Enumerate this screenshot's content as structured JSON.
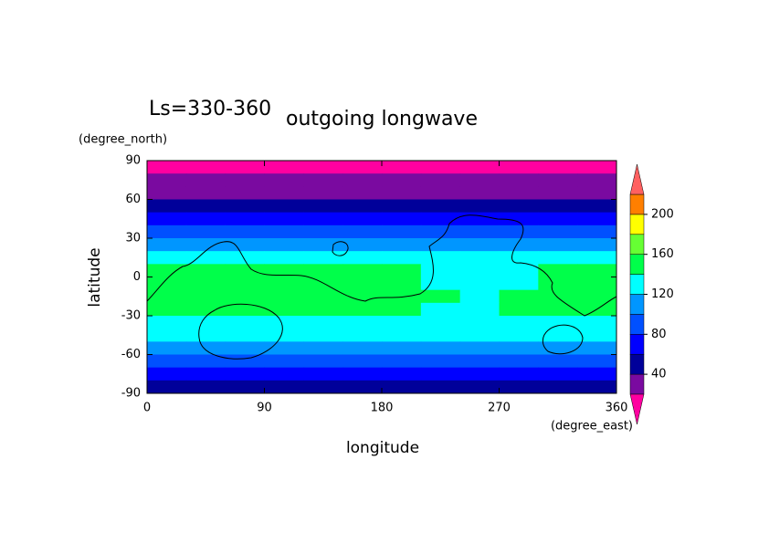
{
  "chart_data": {
    "type": "contourf",
    "title": "outgoing longwave",
    "subtitle": "Ls=330-360",
    "x_label": "longitude",
    "x_unit": "(degree_east)",
    "y_label": "latitude",
    "y_unit": "(degree_north)",
    "xlim": [
      0,
      360
    ],
    "xticks": [
      0,
      90,
      180,
      270,
      360
    ],
    "ylim": [
      -90,
      90
    ],
    "yticks": [
      90,
      60,
      30,
      0,
      -30,
      -60,
      -90
    ],
    "lat": [
      85,
      75,
      65,
      55,
      45,
      35,
      25,
      15,
      5,
      -5,
      -15,
      -25,
      -35,
      -45,
      -55,
      -65,
      -75,
      -85
    ],
    "lon": [
      15,
      45,
      75,
      105,
      135,
      165,
      195,
      225,
      255,
      285,
      315,
      345
    ],
    "values": [
      [
        10,
        10,
        10,
        10,
        10,
        10,
        10,
        10,
        10,
        10,
        10,
        10
      ],
      [
        30,
        30,
        30,
        30,
        30,
        30,
        30,
        30,
        30,
        30,
        30,
        30
      ],
      [
        30,
        30,
        30,
        30,
        30,
        30,
        30,
        30,
        30,
        30,
        30,
        30
      ],
      [
        50,
        50,
        50,
        50,
        50,
        50,
        50,
        50,
        50,
        50,
        50,
        50
      ],
      [
        70,
        70,
        70,
        70,
        70,
        70,
        70,
        70,
        70,
        70,
        70,
        70
      ],
      [
        90,
        90,
        90,
        90,
        90,
        90,
        90,
        90,
        90,
        90,
        90,
        90
      ],
      [
        110,
        110,
        110,
        110,
        110,
        110,
        110,
        110,
        110,
        110,
        110,
        110
      ],
      [
        130,
        130,
        130,
        130,
        130,
        130,
        130,
        130,
        130,
        130,
        130,
        130
      ],
      [
        150,
        150,
        150,
        150,
        150,
        150,
        150,
        130,
        130,
        130,
        150,
        150
      ],
      [
        150,
        150,
        150,
        150,
        150,
        150,
        150,
        130,
        130,
        130,
        150,
        150
      ],
      [
        150,
        150,
        150,
        150,
        150,
        150,
        150,
        150,
        130,
        150,
        150,
        150
      ],
      [
        150,
        150,
        150,
        150,
        150,
        150,
        150,
        130,
        130,
        150,
        150,
        150
      ],
      [
        130,
        130,
        130,
        130,
        130,
        130,
        130,
        130,
        130,
        130,
        130,
        130
      ],
      [
        130,
        130,
        130,
        130,
        130,
        130,
        130,
        130,
        130,
        130,
        130,
        130
      ],
      [
        110,
        110,
        110,
        110,
        110,
        110,
        110,
        110,
        110,
        110,
        110,
        110
      ],
      [
        90,
        90,
        90,
        90,
        90,
        90,
        90,
        90,
        90,
        90,
        90,
        90
      ],
      [
        70,
        70,
        70,
        70,
        70,
        70,
        70,
        70,
        70,
        70,
        70,
        70
      ],
      [
        50,
        50,
        50,
        50,
        50,
        50,
        50,
        50,
        50,
        50,
        50,
        50
      ]
    ],
    "levels": [
      20,
      40,
      60,
      80,
      100,
      120,
      140,
      160,
      180,
      200,
      220
    ],
    "colors": [
      "#7a0aa0",
      "#00009a",
      "#0000ff",
      "#0050ff",
      "#0096ff",
      "#00ffff",
      "#00ff4a",
      "#66ff33",
      "#ffff00",
      "#ff7f00"
    ],
    "under_color": "#ff00a0",
    "over_color": "#ff6060",
    "colorbar_ticks": [
      40,
      80,
      120,
      160,
      200
    ]
  }
}
